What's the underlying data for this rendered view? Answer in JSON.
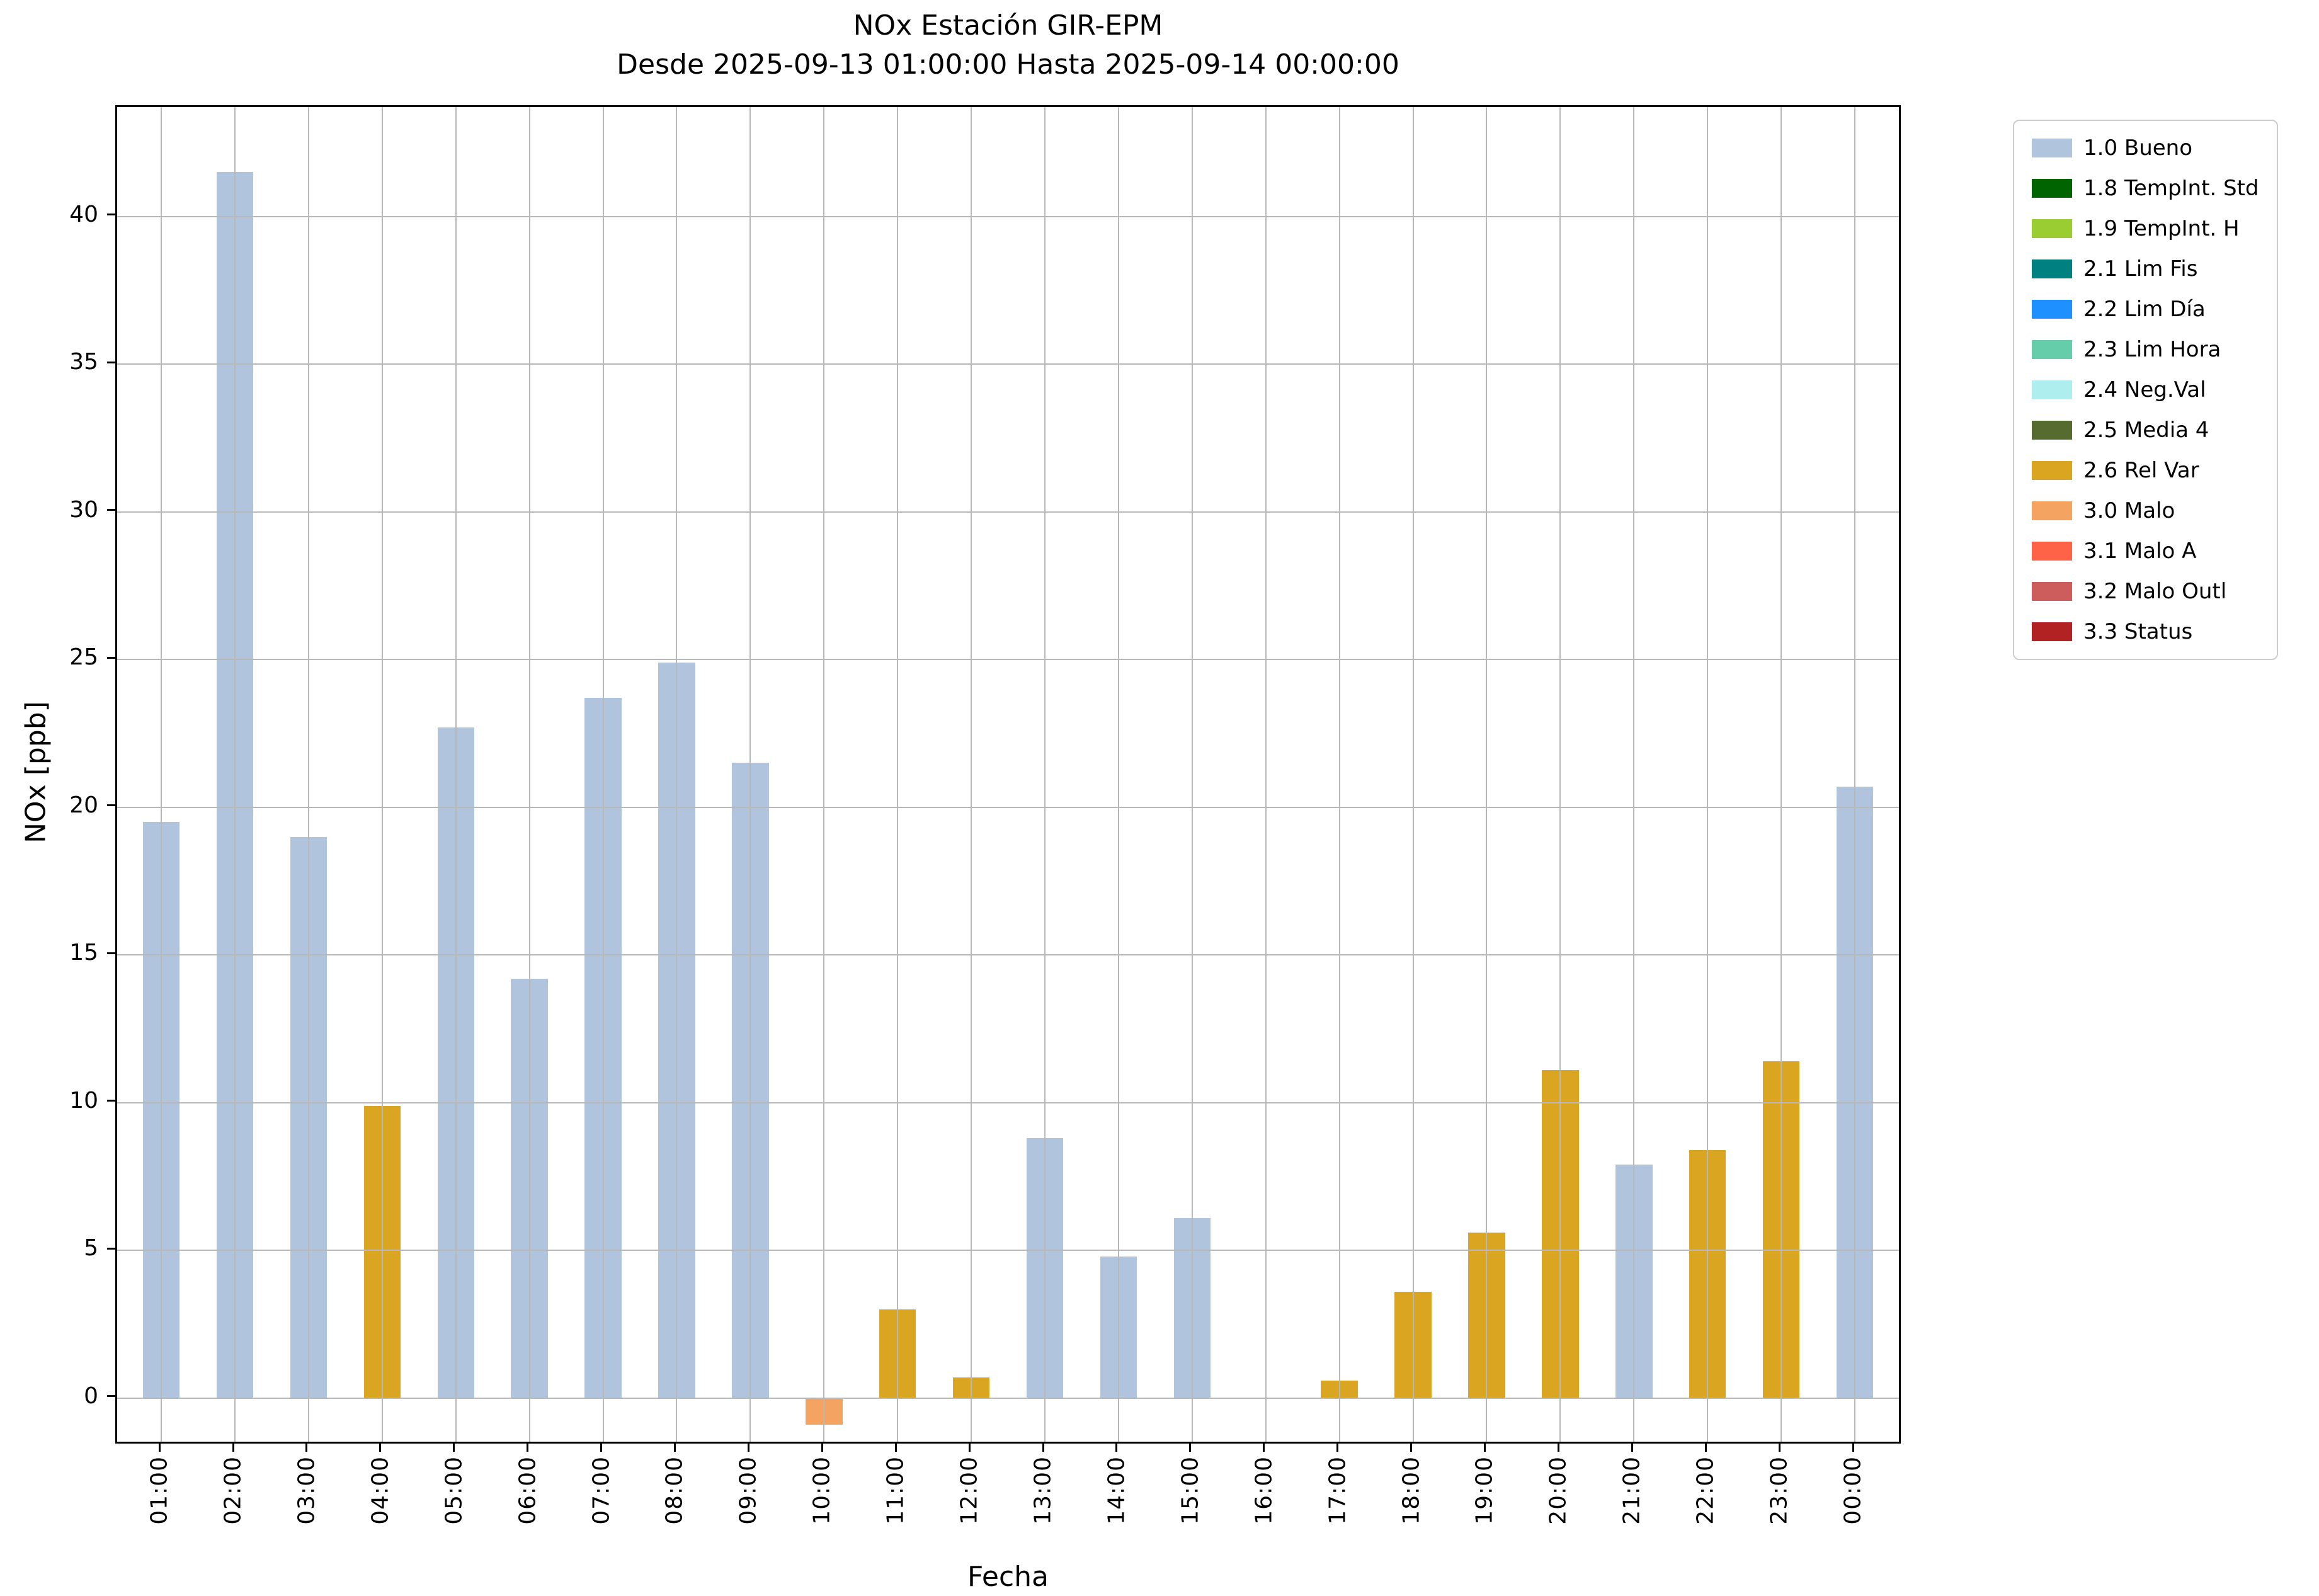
{
  "chart_data": {
    "type": "bar",
    "title": "NOx Estación GIR-EPM",
    "subtitle": "Desde 2025-09-13 01:00:00 Hasta 2025-09-14 00:00:00",
    "xlabel": "Fecha",
    "ylabel": "NOx [ppb]",
    "categories": [
      "01:00",
      "02:00",
      "03:00",
      "04:00",
      "05:00",
      "06:00",
      "07:00",
      "08:00",
      "09:00",
      "10:00",
      "11:00",
      "12:00",
      "13:00",
      "14:00",
      "15:00",
      "16:00",
      "17:00",
      "18:00",
      "19:00",
      "20:00",
      "21:00",
      "22:00",
      "23:00",
      "00:00"
    ],
    "values": [
      19.5,
      41.5,
      19.0,
      9.9,
      22.7,
      14.2,
      23.7,
      24.9,
      21.5,
      -0.9,
      3.0,
      0.7,
      8.8,
      4.8,
      6.1,
      0.0,
      0.6,
      3.6,
      5.6,
      11.1,
      7.9,
      8.4,
      11.4,
      20.7
    ],
    "statuses": [
      "1.0 Bueno",
      "1.0 Bueno",
      "1.0 Bueno",
      "2.6 Rel Var",
      "1.0 Bueno",
      "1.0 Bueno",
      "1.0 Bueno",
      "1.0 Bueno",
      "1.0 Bueno",
      "3.0 Malo",
      "2.6 Rel Var",
      "2.6 Rel Var",
      "1.0 Bueno",
      "1.0 Bueno",
      "1.0 Bueno",
      "1.0 Bueno",
      "2.6 Rel Var",
      "2.6 Rel Var",
      "2.6 Rel Var",
      "2.6 Rel Var",
      "1.0 Bueno",
      "2.6 Rel Var",
      "2.6 Rel Var",
      "1.0 Bueno"
    ],
    "status_colors": {
      "1.0 Bueno": "#b0c4de",
      "2.6 Rel Var": "#daa520",
      "3.0 Malo": "#f4a460"
    },
    "yticks": [
      0,
      5,
      10,
      15,
      20,
      25,
      30,
      35,
      40
    ],
    "ylim": [
      -1.6,
      43.7
    ],
    "xlim": [
      -0.6,
      23.65
    ],
    "bar_width": 0.5,
    "grid": true,
    "legend_position": "upper right outside",
    "legend": [
      {
        "label": "1.0 Bueno",
        "color": "#b0c4de"
      },
      {
        "label": "1.8 TempInt. Std",
        "color": "#006400"
      },
      {
        "label": "1.9 TempInt. H",
        "color": "#9acd32"
      },
      {
        "label": "2.1 Lim Fis",
        "color": "#008080"
      },
      {
        "label": "2.2 Lim Día",
        "color": "#1e90ff"
      },
      {
        "label": "2.3 Lim Hora",
        "color": "#66cdaa"
      },
      {
        "label": "2.4 Neg.Val",
        "color": "#afeeee"
      },
      {
        "label": "2.5 Media 4",
        "color": "#556b2f"
      },
      {
        "label": "2.6 Rel Var",
        "color": "#daa520"
      },
      {
        "label": "3.0 Malo",
        "color": "#f4a460"
      },
      {
        "label": "3.1 Malo A",
        "color": "#ff6347"
      },
      {
        "label": "3.2 Malo Outl",
        "color": "#cd5c5c"
      },
      {
        "label": "3.3 Status",
        "color": "#b22222"
      }
    ]
  }
}
